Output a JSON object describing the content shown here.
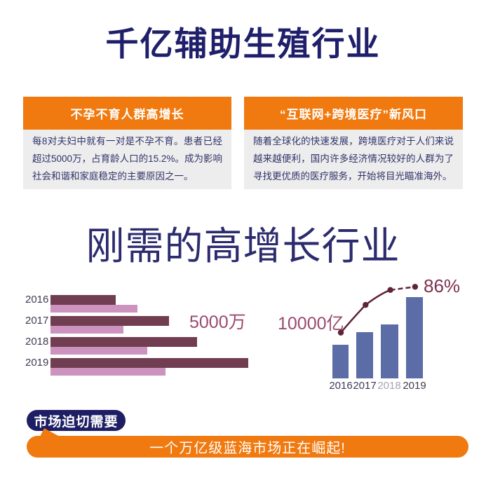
{
  "title": "千亿辅助生殖行业",
  "info_cards": [
    {
      "header": "不孕不育人群高增长",
      "body": "每8对夫妇中就有一对是不孕不育。患者已经超过5000万，占育龄人口的15.2%。成为影响社会和谐和家庭稳定的主要原因之一。"
    },
    {
      "header": "“互联网+跨境医疗”新风口",
      "body": "随着全球化的快速发展，跨境医疗对于人们来说越来越便利，国内许多经济情况较好的人群为了寻找更优质的医疗服务，开始将目光瞄准海外。"
    }
  ],
  "section_title": "刚需的高增长行业",
  "chart_data": [
    {
      "id": "infertility-population-chart",
      "type": "bar",
      "orientation": "horizontal",
      "categories": [
        "2016",
        "2017",
        "2018",
        "2019"
      ],
      "series": [
        {
          "name": "dark-series",
          "color": "#713d50",
          "values": [
            33,
            60,
            74,
            100
          ]
        },
        {
          "name": "light-series",
          "color": "#cc93be",
          "values": [
            44,
            37,
            49,
            58
          ]
        }
      ],
      "annotation": "5000万",
      "axis": "none",
      "note": "no numeric axis shown; values are relative bar lengths in % of longest bar"
    },
    {
      "id": "market-scale-chart",
      "type": "bar+line",
      "categories": [
        "2016",
        "2017",
        "2018",
        "2019"
      ],
      "bars": {
        "color": "#5b6ca7",
        "values": [
          41,
          57,
          66,
          100
        ]
      },
      "line": {
        "color": "#5f2438",
        "values_pct_est": [
          43,
          69,
          83,
          86
        ],
        "last_label": "86%",
        "last_segment_dashed": true
      },
      "annotation": "10000亿",
      "tick_label_colors": [
        "#3d3d55",
        "#3d3d55",
        "#a5a5b1",
        "#3d3d55"
      ],
      "axis": "none",
      "note": "only the final line value (86%) is labeled; other line values estimated from pixels"
    }
  ],
  "market": {
    "badge_label": "市场迫切需要",
    "banner_text": "一个万亿级蓝海市场正在崛起!"
  },
  "colors": {
    "navy_title": "#1f1f6b",
    "navy_badge": "#1e1e64",
    "orange_accent": "#f07a10",
    "card_body_bg": "#ededed",
    "card_body_text": "#32326b",
    "maroon_dark_bar": "#713d50",
    "pink_light_bar": "#cc93be",
    "maroon_annotation": "#9a4a6e",
    "blue_bar": "#5b6ca7",
    "trend_line": "#5f2438"
  }
}
